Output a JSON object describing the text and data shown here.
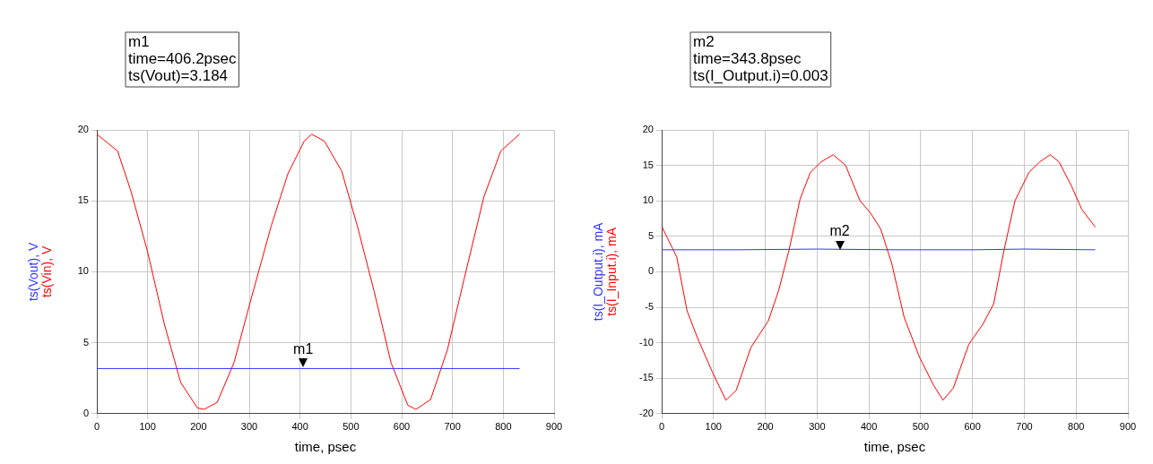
{
  "chart_data": [
    {
      "type": "line",
      "xlabel": "time, psec",
      "xlim": [
        0,
        900
      ],
      "xticks": [
        0,
        100,
        200,
        300,
        400,
        500,
        600,
        700,
        800,
        900
      ],
      "ylim": [
        0,
        20
      ],
      "yticks": [
        0,
        5,
        10,
        15,
        20
      ],
      "grid": true,
      "legend": "left",
      "marker": "none",
      "line_style": "solid",
      "series": [
        {
          "name": "ts(Vout), V",
          "color": "#3333ff",
          "x": [
            0,
            200,
            400,
            600,
            832
          ],
          "values": [
            3.18,
            3.18,
            3.18,
            3.18,
            3.18
          ]
        },
        {
          "name": "ts(Vin), V",
          "color": "#ff0000",
          "x": [
            0,
            41,
            67,
            100,
            133,
            165,
            198,
            211,
            237,
            270,
            303,
            343,
            376,
            408,
            423,
            448,
            482,
            513,
            546,
            579,
            612,
            628,
            657,
            690,
            723,
            762,
            795,
            832
          ],
          "values": [
            19.7,
            18.5,
            15.7,
            11.4,
            6.3,
            2.2,
            0.4,
            0.3,
            0.8,
            3.6,
            8,
            13.2,
            16.9,
            19.2,
            19.7,
            19.2,
            17.1,
            13.2,
            8.6,
            3.6,
            0.6,
            0.3,
            1,
            4.5,
            9.5,
            15.3,
            18.5,
            19.7
          ]
        }
      ],
      "annotations": [
        "m1\ntime=406.2psec\nts(Vout)=3.184",
        {
          "text": "m1",
          "x": 406.2,
          "y": 3.184
        }
      ]
    },
    {
      "type": "line",
      "xlabel": "time, psec",
      "xlim": [
        0,
        900
      ],
      "xticks": [
        0,
        100,
        200,
        300,
        400,
        500,
        600,
        700,
        800,
        900
      ],
      "ylim": [
        -20,
        20
      ],
      "yticks": [
        -20,
        -15,
        -10,
        -5,
        0,
        5,
        10,
        15,
        20
      ],
      "grid": true,
      "legend": "left",
      "marker": "none",
      "line_style": "solid",
      "series": [
        {
          "name": "ts(I_Output.i), mA",
          "color": "#3333ff",
          "x": [
            0,
            150,
            300,
            450,
            600,
            700,
            837
          ],
          "values": [
            3.1,
            3.1,
            3.2,
            3.1,
            3.1,
            3.2,
            3.1
          ]
        },
        {
          "name": "ts(I_Input.i), mA",
          "color": "#ff0000",
          "x": [
            0,
            29,
            49,
            69,
            97,
            124,
            144,
            172,
            206,
            226,
            246,
            267,
            287,
            308,
            331,
            355,
            383,
            403,
            423,
            444,
            468,
            498,
            525,
            543,
            563,
            593,
            620,
            641,
            661,
            682,
            709,
            730,
            750,
            767,
            791,
            811,
            837
          ],
          "values": [
            6.4,
            2.1,
            -5.5,
            -9.3,
            -14,
            -18.1,
            -16.7,
            -10.7,
            -6.9,
            -2.6,
            3.1,
            10.2,
            14,
            15.5,
            16.5,
            15,
            10,
            8.3,
            6,
            1.2,
            -6.4,
            -12.1,
            -16,
            -18.1,
            -16.4,
            -10.2,
            -7.4,
            -4.5,
            3.1,
            10,
            14,
            15.5,
            16.5,
            15.5,
            12.1,
            8.8,
            6.3
          ]
        }
      ],
      "annotations": [
        "m2\ntime=343.8psec\nts(I_Output.i)=0.003",
        {
          "text": "m2",
          "x": 343.8,
          "y": 3
        }
      ]
    }
  ]
}
